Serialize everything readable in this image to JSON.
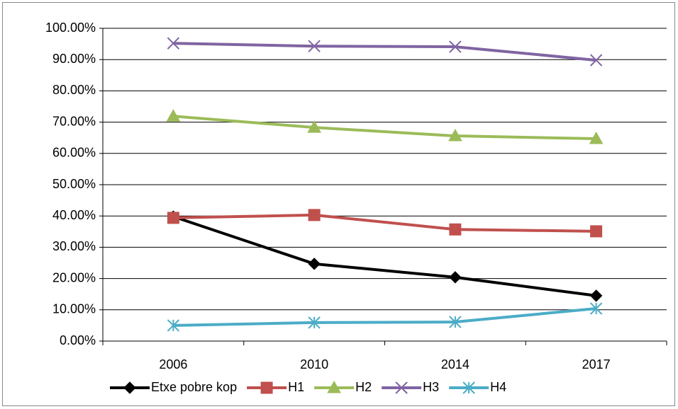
{
  "chart_data": {
    "type": "line",
    "categories": [
      "2006",
      "2010",
      "2014",
      "2017"
    ],
    "series": [
      {
        "name": "Etxe pobre kop",
        "color": "#000000",
        "marker": "diamond",
        "values": [
          39.8,
          24.7,
          20.4,
          14.5
        ]
      },
      {
        "name": "H1",
        "color": "#c0504d",
        "marker": "square",
        "values": [
          39.4,
          40.3,
          35.7,
          35.1
        ]
      },
      {
        "name": "H2",
        "color": "#9bbb59",
        "marker": "triangle",
        "values": [
          71.9,
          68.3,
          65.6,
          64.7
        ]
      },
      {
        "name": "H3",
        "color": "#8064a2",
        "marker": "x",
        "values": [
          95.2,
          94.3,
          94.1,
          89.8
        ]
      },
      {
        "name": "H4",
        "color": "#4bacc6",
        "marker": "star",
        "values": [
          5.0,
          5.9,
          6.1,
          10.4
        ]
      }
    ],
    "ylim": [
      0,
      100
    ],
    "yticks": [
      {
        "value": 0,
        "label": "0.00%"
      },
      {
        "value": 10,
        "label": "10.00%"
      },
      {
        "value": 20,
        "label": "20.00%"
      },
      {
        "value": 30,
        "label": "30.00%"
      },
      {
        "value": 40,
        "label": "40.00%"
      },
      {
        "value": 50,
        "label": "50.00%"
      },
      {
        "value": 60,
        "label": "60.00%"
      },
      {
        "value": 70,
        "label": "70.00%"
      },
      {
        "value": 80,
        "label": "80.00%"
      },
      {
        "value": 90,
        "label": "90.00%"
      },
      {
        "value": 100,
        "label": "100.00%"
      }
    ],
    "grid": true,
    "legend": "bottom"
  }
}
